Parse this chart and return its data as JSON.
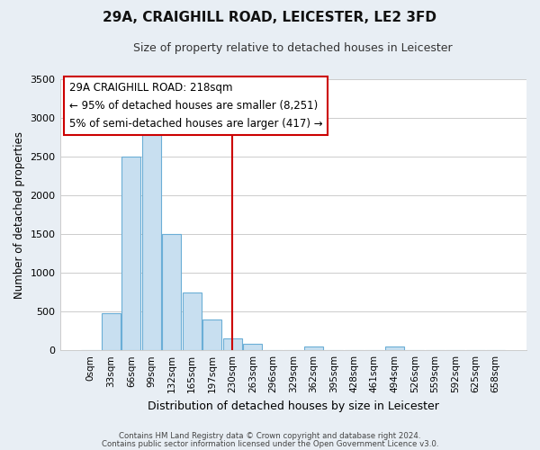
{
  "title": "29A, CRAIGHILL ROAD, LEICESTER, LE2 3FD",
  "subtitle": "Size of property relative to detached houses in Leicester",
  "xlabel": "Distribution of detached houses by size in Leicester",
  "ylabel": "Number of detached properties",
  "bar_labels": [
    "0sqm",
    "33sqm",
    "66sqm",
    "99sqm",
    "132sqm",
    "165sqm",
    "197sqm",
    "230sqm",
    "263sqm",
    "296sqm",
    "329sqm",
    "362sqm",
    "395sqm",
    "428sqm",
    "461sqm",
    "494sqm",
    "526sqm",
    "559sqm",
    "592sqm",
    "625sqm",
    "658sqm"
  ],
  "bar_heights": [
    0,
    480,
    2500,
    2800,
    1500,
    750,
    400,
    150,
    80,
    0,
    0,
    50,
    0,
    0,
    0,
    45,
    0,
    0,
    0,
    0,
    0
  ],
  "bar_color": "#c8dff0",
  "bar_edge_color": "#6baed6",
  "vline_x_index": 7,
  "vline_color": "#cc0000",
  "ylim": [
    0,
    3500
  ],
  "yticks": [
    0,
    500,
    1000,
    1500,
    2000,
    2500,
    3000,
    3500
  ],
  "annotation_title": "29A CRAIGHILL ROAD: 218sqm",
  "annotation_line1": "← 95% of detached houses are smaller (8,251)",
  "annotation_line2": "5% of semi-detached houses are larger (417) →",
  "footnote1": "Contains HM Land Registry data © Crown copyright and database right 2024.",
  "footnote2": "Contains public sector information licensed under the Open Government Licence v3.0.",
  "background_color": "#e8eef4",
  "plot_bg_color": "#ffffff"
}
